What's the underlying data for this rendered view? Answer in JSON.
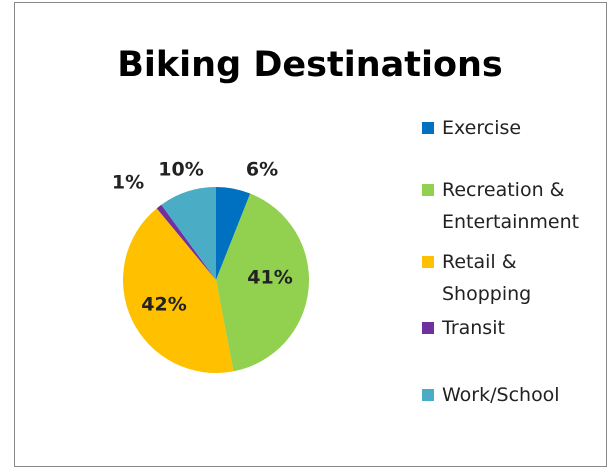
{
  "chart_data": {
    "type": "pie",
    "title": "Biking Destinations",
    "categories": [
      "Exercise",
      "Recreation & Entertainment",
      "Retail & Shopping",
      "Transit",
      "Work/School"
    ],
    "values": [
      6,
      41,
      42,
      1,
      10
    ],
    "value_labels": [
      "6%",
      "41%",
      "42%",
      "1%",
      "10%"
    ],
    "colors": [
      "#0070c0",
      "#92d050",
      "#ffc000",
      "#7030a0",
      "#4bacc6"
    ],
    "legend": "right"
  }
}
